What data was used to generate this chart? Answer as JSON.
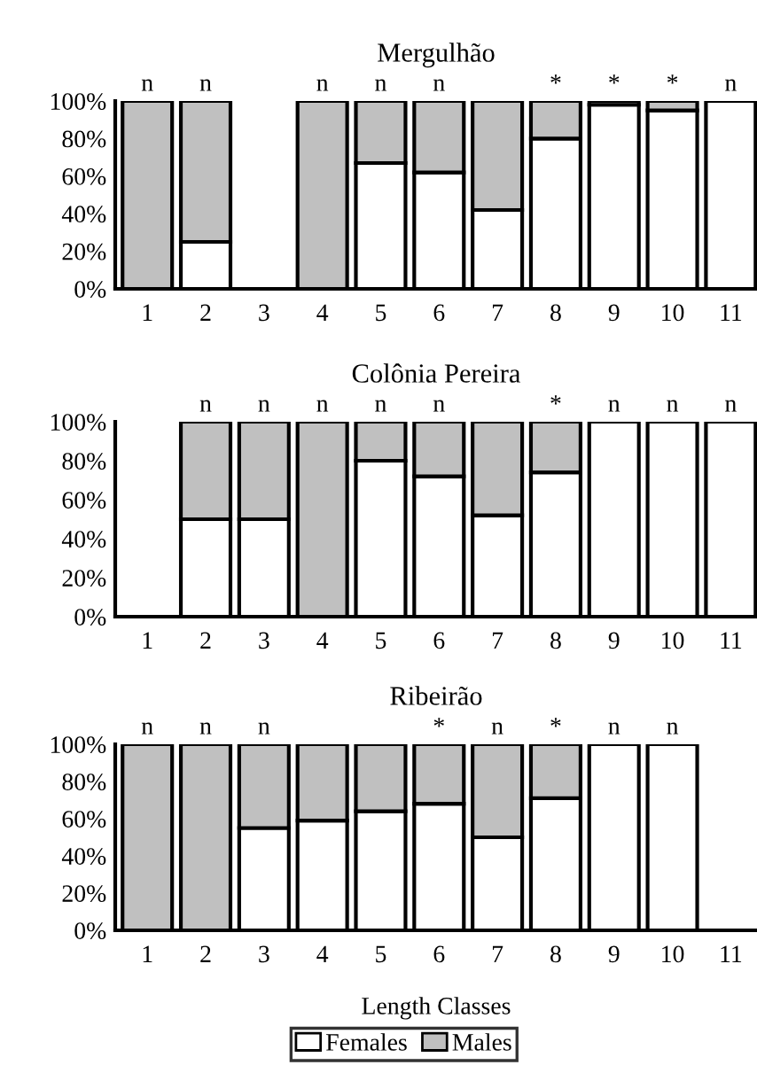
{
  "chart_data": [
    {
      "type": "bar",
      "title": "Mergulhão",
      "stacked": true,
      "categories": [
        "1",
        "2",
        "3",
        "4",
        "5",
        "6",
        "7",
        "8",
        "9",
        "10",
        "11"
      ],
      "series": [
        {
          "color": "#ffffff",
          "values": [
            0,
            25,
            0,
            0,
            67,
            62,
            42,
            80,
            98,
            95,
            100
          ]
        },
        {
          "color": "#c0c0c0",
          "values": [
            100,
            75,
            0,
            100,
            33,
            38,
            58,
            20,
            2,
            5,
            0
          ]
        }
      ],
      "ylim": [
        0,
        100
      ],
      "yticks": [
        {
          "value": 0,
          "label": "0%"
        },
        {
          "value": 20,
          "label": "20%"
        },
        {
          "value": 40,
          "label": "40%"
        },
        {
          "value": 60,
          "label": "60%"
        },
        {
          "value": 80,
          "label": "80%"
        },
        {
          "value": 100,
          "label": "100%"
        }
      ],
      "annotations": [
        {
          "text": "n",
          "x": "1",
          "y": 100
        },
        {
          "text": "n",
          "x": "2",
          "y": 100
        },
        {
          "text": "n",
          "x": "4",
          "y": 100
        },
        {
          "text": "n",
          "x": "5",
          "y": 100
        },
        {
          "text": "n",
          "x": "6",
          "y": 100
        },
        {
          "text": "*",
          "x": "8",
          "y": 100
        },
        {
          "text": "*",
          "x": "9",
          "y": 100
        },
        {
          "text": "*",
          "x": "10",
          "y": 100
        },
        {
          "text": "n",
          "x": "11",
          "y": 100
        }
      ],
      "grid": false,
      "legend": false
    },
    {
      "type": "bar",
      "title": "Colônia Pereira",
      "stacked": true,
      "categories": [
        "1",
        "2",
        "3",
        "4",
        "5",
        "6",
        "7",
        "8",
        "9",
        "10",
        "11"
      ],
      "series": [
        {
          "color": "#ffffff",
          "values": [
            0,
            50,
            50,
            0,
            80,
            72,
            52,
            74,
            100,
            100,
            100
          ]
        },
        {
          "color": "#c0c0c0",
          "values": [
            0,
            50,
            50,
            100,
            20,
            28,
            48,
            26,
            0,
            0,
            0
          ]
        }
      ],
      "ylim": [
        0,
        100
      ],
      "yticks": [
        {
          "value": 0,
          "label": "0%"
        },
        {
          "value": 20,
          "label": "20%"
        },
        {
          "value": 40,
          "label": "40%"
        },
        {
          "value": 60,
          "label": "60%"
        },
        {
          "value": 80,
          "label": "80%"
        },
        {
          "value": 100,
          "label": "100%"
        }
      ],
      "annotations": [
        {
          "text": "n",
          "x": "2",
          "y": 100
        },
        {
          "text": "n",
          "x": "3",
          "y": 100
        },
        {
          "text": "n",
          "x": "4",
          "y": 100
        },
        {
          "text": "n",
          "x": "5",
          "y": 100
        },
        {
          "text": "n",
          "x": "6",
          "y": 100
        },
        {
          "text": "*",
          "x": "8",
          "y": 100
        },
        {
          "text": "n",
          "x": "9",
          "y": 100
        },
        {
          "text": "n",
          "x": "10",
          "y": 100
        },
        {
          "text": "n",
          "x": "11",
          "y": 100
        }
      ],
      "grid": false,
      "legend": false
    },
    {
      "type": "bar",
      "title": "Ribeirão",
      "xlabel": "Length Classes",
      "stacked": true,
      "categories": [
        "1",
        "2",
        "3",
        "4",
        "5",
        "6",
        "7",
        "8",
        "9",
        "10",
        "11"
      ],
      "series": [
        {
          "name": "Females",
          "color": "#ffffff",
          "values": [
            0,
            0,
            55,
            59,
            64,
            68,
            50,
            71,
            100,
            100,
            0
          ]
        },
        {
          "name": "Males",
          "color": "#c0c0c0",
          "values": [
            100,
            100,
            45,
            41,
            36,
            32,
            50,
            29,
            0,
            0,
            0
          ]
        }
      ],
      "ylim": [
        0,
        100
      ],
      "yticks": [
        {
          "value": 0,
          "label": "0%"
        },
        {
          "value": 20,
          "label": "20%"
        },
        {
          "value": 40,
          "label": "40%"
        },
        {
          "value": 60,
          "label": "60%"
        },
        {
          "value": 80,
          "label": "80%"
        },
        {
          "value": 100,
          "label": "100%"
        }
      ],
      "annotations": [
        {
          "text": "n",
          "x": "1",
          "y": 100
        },
        {
          "text": "n",
          "x": "2",
          "y": 100
        },
        {
          "text": "n",
          "x": "3",
          "y": 100
        },
        {
          "text": "*",
          "x": "6",
          "y": 100
        },
        {
          "text": "n",
          "x": "7",
          "y": 100
        },
        {
          "text": "*",
          "x": "8",
          "y": 100
        },
        {
          "text": "n",
          "x": "9",
          "y": 100
        },
        {
          "text": "n",
          "x": "10",
          "y": 100
        }
      ],
      "grid": false,
      "legend": "bottom"
    }
  ]
}
